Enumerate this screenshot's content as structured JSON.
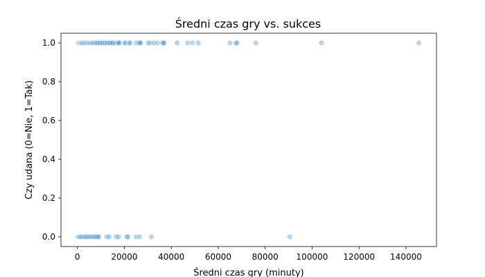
{
  "chart_data": {
    "type": "scatter",
    "title": "Średni czas gry vs. sukces",
    "xlabel": "Średni czas gry (minuty)",
    "ylabel": "Czy udana (0=Nie, 1=Tak)",
    "xlim": [
      -7000,
      153000
    ],
    "ylim": [
      -0.05,
      1.05
    ],
    "x_ticks": [
      0,
      20000,
      40000,
      60000,
      80000,
      100000,
      120000,
      140000
    ],
    "y_ticks": [
      0.0,
      0.2,
      0.4,
      0.6,
      0.8,
      1.0
    ],
    "x_tick_labels": [
      "0",
      "20000",
      "40000",
      "60000",
      "80000",
      "100000",
      "120000",
      "140000"
    ],
    "y_tick_labels": [
      "0.0",
      "0.2",
      "0.4",
      "0.6",
      "0.8",
      "1.0"
    ],
    "grid": false,
    "marker_color": "#1f77b4",
    "marker_alpha": 0.3,
    "series": [
      {
        "y_value": 1,
        "x": [
          0,
          0,
          100,
          200,
          300,
          400,
          600,
          800,
          1000,
          1200,
          1500,
          1800,
          2000,
          2300,
          2600,
          3000,
          3300,
          3600,
          4000,
          4300,
          4600,
          5000,
          5300,
          5600,
          6000,
          6300,
          6600,
          7000,
          7400,
          7800,
          8200,
          8600,
          9000,
          9500,
          10000,
          10500,
          11000,
          11600,
          12000,
          12600,
          13000,
          13600,
          14000,
          14600,
          15200,
          16000,
          17000,
          17500,
          18000,
          20000,
          20500,
          22000,
          22500,
          25000,
          26000,
          26500,
          27000,
          30000,
          31000,
          32500,
          34000,
          36000,
          36500,
          37000,
          42500,
          47000,
          49000,
          51500,
          65000,
          67500,
          68000,
          76000,
          104000,
          145500
        ]
      },
      {
        "y_value": 0,
        "x": [
          0,
          0,
          100,
          300,
          500,
          800,
          1000,
          1300,
          1600,
          2000,
          2400,
          2800,
          3200,
          3600,
          4000,
          4500,
          5000,
          5500,
          6000,
          6500,
          7000,
          7500,
          8000,
          8600,
          9200,
          12500,
          13500,
          16500,
          17500,
          21000,
          21500,
          25000,
          26500,
          31500,
          90500
        ]
      }
    ]
  }
}
